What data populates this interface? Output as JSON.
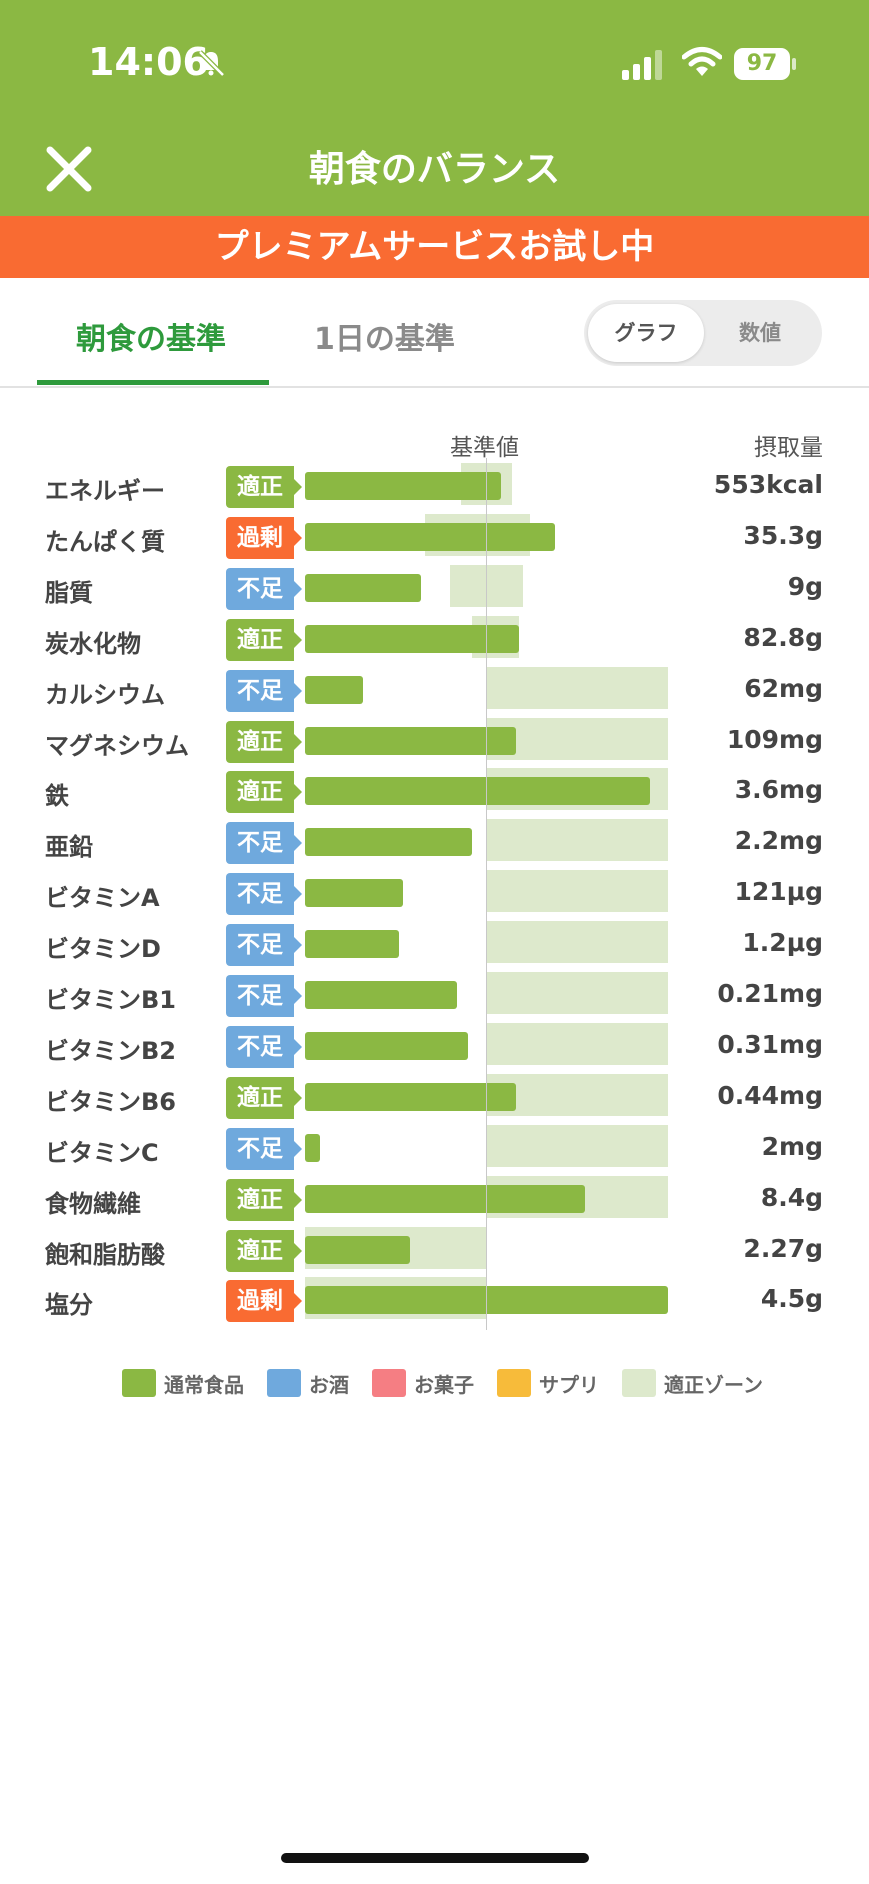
{
  "status_bar": {
    "time": "14:06",
    "battery": "97"
  },
  "header": {
    "title": "朝食のバランス"
  },
  "banner": {
    "text": "プレミアムサービスお試し中"
  },
  "tabs": [
    {
      "label": "朝食の基準",
      "active": true
    },
    {
      "label": "1日の基準",
      "active": false
    }
  ],
  "view_toggle": {
    "options": [
      "グラフ",
      "数値"
    ],
    "selected": "グラフ"
  },
  "table_headers": {
    "reference": "基準値",
    "intake": "摂取量"
  },
  "status_colors": {
    "適正": "#8bb843",
    "過剰": "#f96b32",
    "不足": "#6fa9dd"
  },
  "rows": [
    {
      "name": "エネルギー",
      "status": "適正",
      "value": "553kcal",
      "bar": 0.54,
      "zone": [
        0.43,
        0.57
      ]
    },
    {
      "name": "たんぱく質",
      "status": "過剰",
      "value": "35.3g",
      "bar": 0.69,
      "zone": [
        0.33,
        0.62
      ]
    },
    {
      "name": "脂質",
      "status": "不足",
      "value": "9g",
      "bar": 0.32,
      "zone": [
        0.4,
        0.6
      ]
    },
    {
      "name": "炭水化物",
      "status": "適正",
      "value": "82.8g",
      "bar": 0.59,
      "zone": [
        0.46,
        0.59
      ]
    },
    {
      "name": "カルシウム",
      "status": "不足",
      "value": "62mg",
      "bar": 0.16,
      "zone": [
        0.5,
        1.0
      ]
    },
    {
      "name": "マグネシウム",
      "status": "適正",
      "value": "109mg",
      "bar": 0.58,
      "zone": [
        0.5,
        1.0
      ]
    },
    {
      "name": "鉄",
      "status": "適正",
      "value": "3.6mg",
      "bar": 0.95,
      "zone": [
        0.5,
        1.0
      ]
    },
    {
      "name": "亜鉛",
      "status": "不足",
      "value": "2.2mg",
      "bar": 0.46,
      "zone": [
        0.5,
        1.0
      ]
    },
    {
      "name": "ビタミンA",
      "status": "不足",
      "value": "121μg",
      "bar": 0.27,
      "zone": [
        0.5,
        1.0
      ]
    },
    {
      "name": "ビタミンD",
      "status": "不足",
      "value": "1.2μg",
      "bar": 0.26,
      "zone": [
        0.5,
        1.0
      ]
    },
    {
      "name": "ビタミンB1",
      "status": "不足",
      "value": "0.21mg",
      "bar": 0.42,
      "zone": [
        0.5,
        1.0
      ]
    },
    {
      "name": "ビタミンB2",
      "status": "不足",
      "value": "0.31mg",
      "bar": 0.45,
      "zone": [
        0.5,
        1.0
      ]
    },
    {
      "name": "ビタミンB6",
      "status": "適正",
      "value": "0.44mg",
      "bar": 0.58,
      "zone": [
        0.5,
        1.0
      ]
    },
    {
      "name": "ビタミンC",
      "status": "不足",
      "value": "2mg",
      "bar": 0.04,
      "zone": [
        0.5,
        1.0
      ]
    },
    {
      "name": "食物繊維",
      "status": "適正",
      "value": "8.4g",
      "bar": 0.77,
      "zone": [
        0.5,
        1.0
      ]
    },
    {
      "name": "飽和脂肪酸",
      "status": "適正",
      "value": "2.27g",
      "bar": 0.29,
      "zone": [
        0.0,
        0.5
      ]
    },
    {
      "name": "塩分",
      "status": "過剰",
      "value": "4.5g",
      "bar": 1.0,
      "zone": [
        0.0,
        0.5
      ]
    }
  ],
  "legend": [
    {
      "label": "通常食品",
      "color": "#8bb843"
    },
    {
      "label": "お酒",
      "color": "#6fa9dd"
    },
    {
      "label": "お菓子",
      "color": "#f57e83"
    },
    {
      "label": "サプリ",
      "color": "#f7bb3a"
    },
    {
      "label": "適正ゾーン",
      "color": "#dde9cc"
    }
  ]
}
